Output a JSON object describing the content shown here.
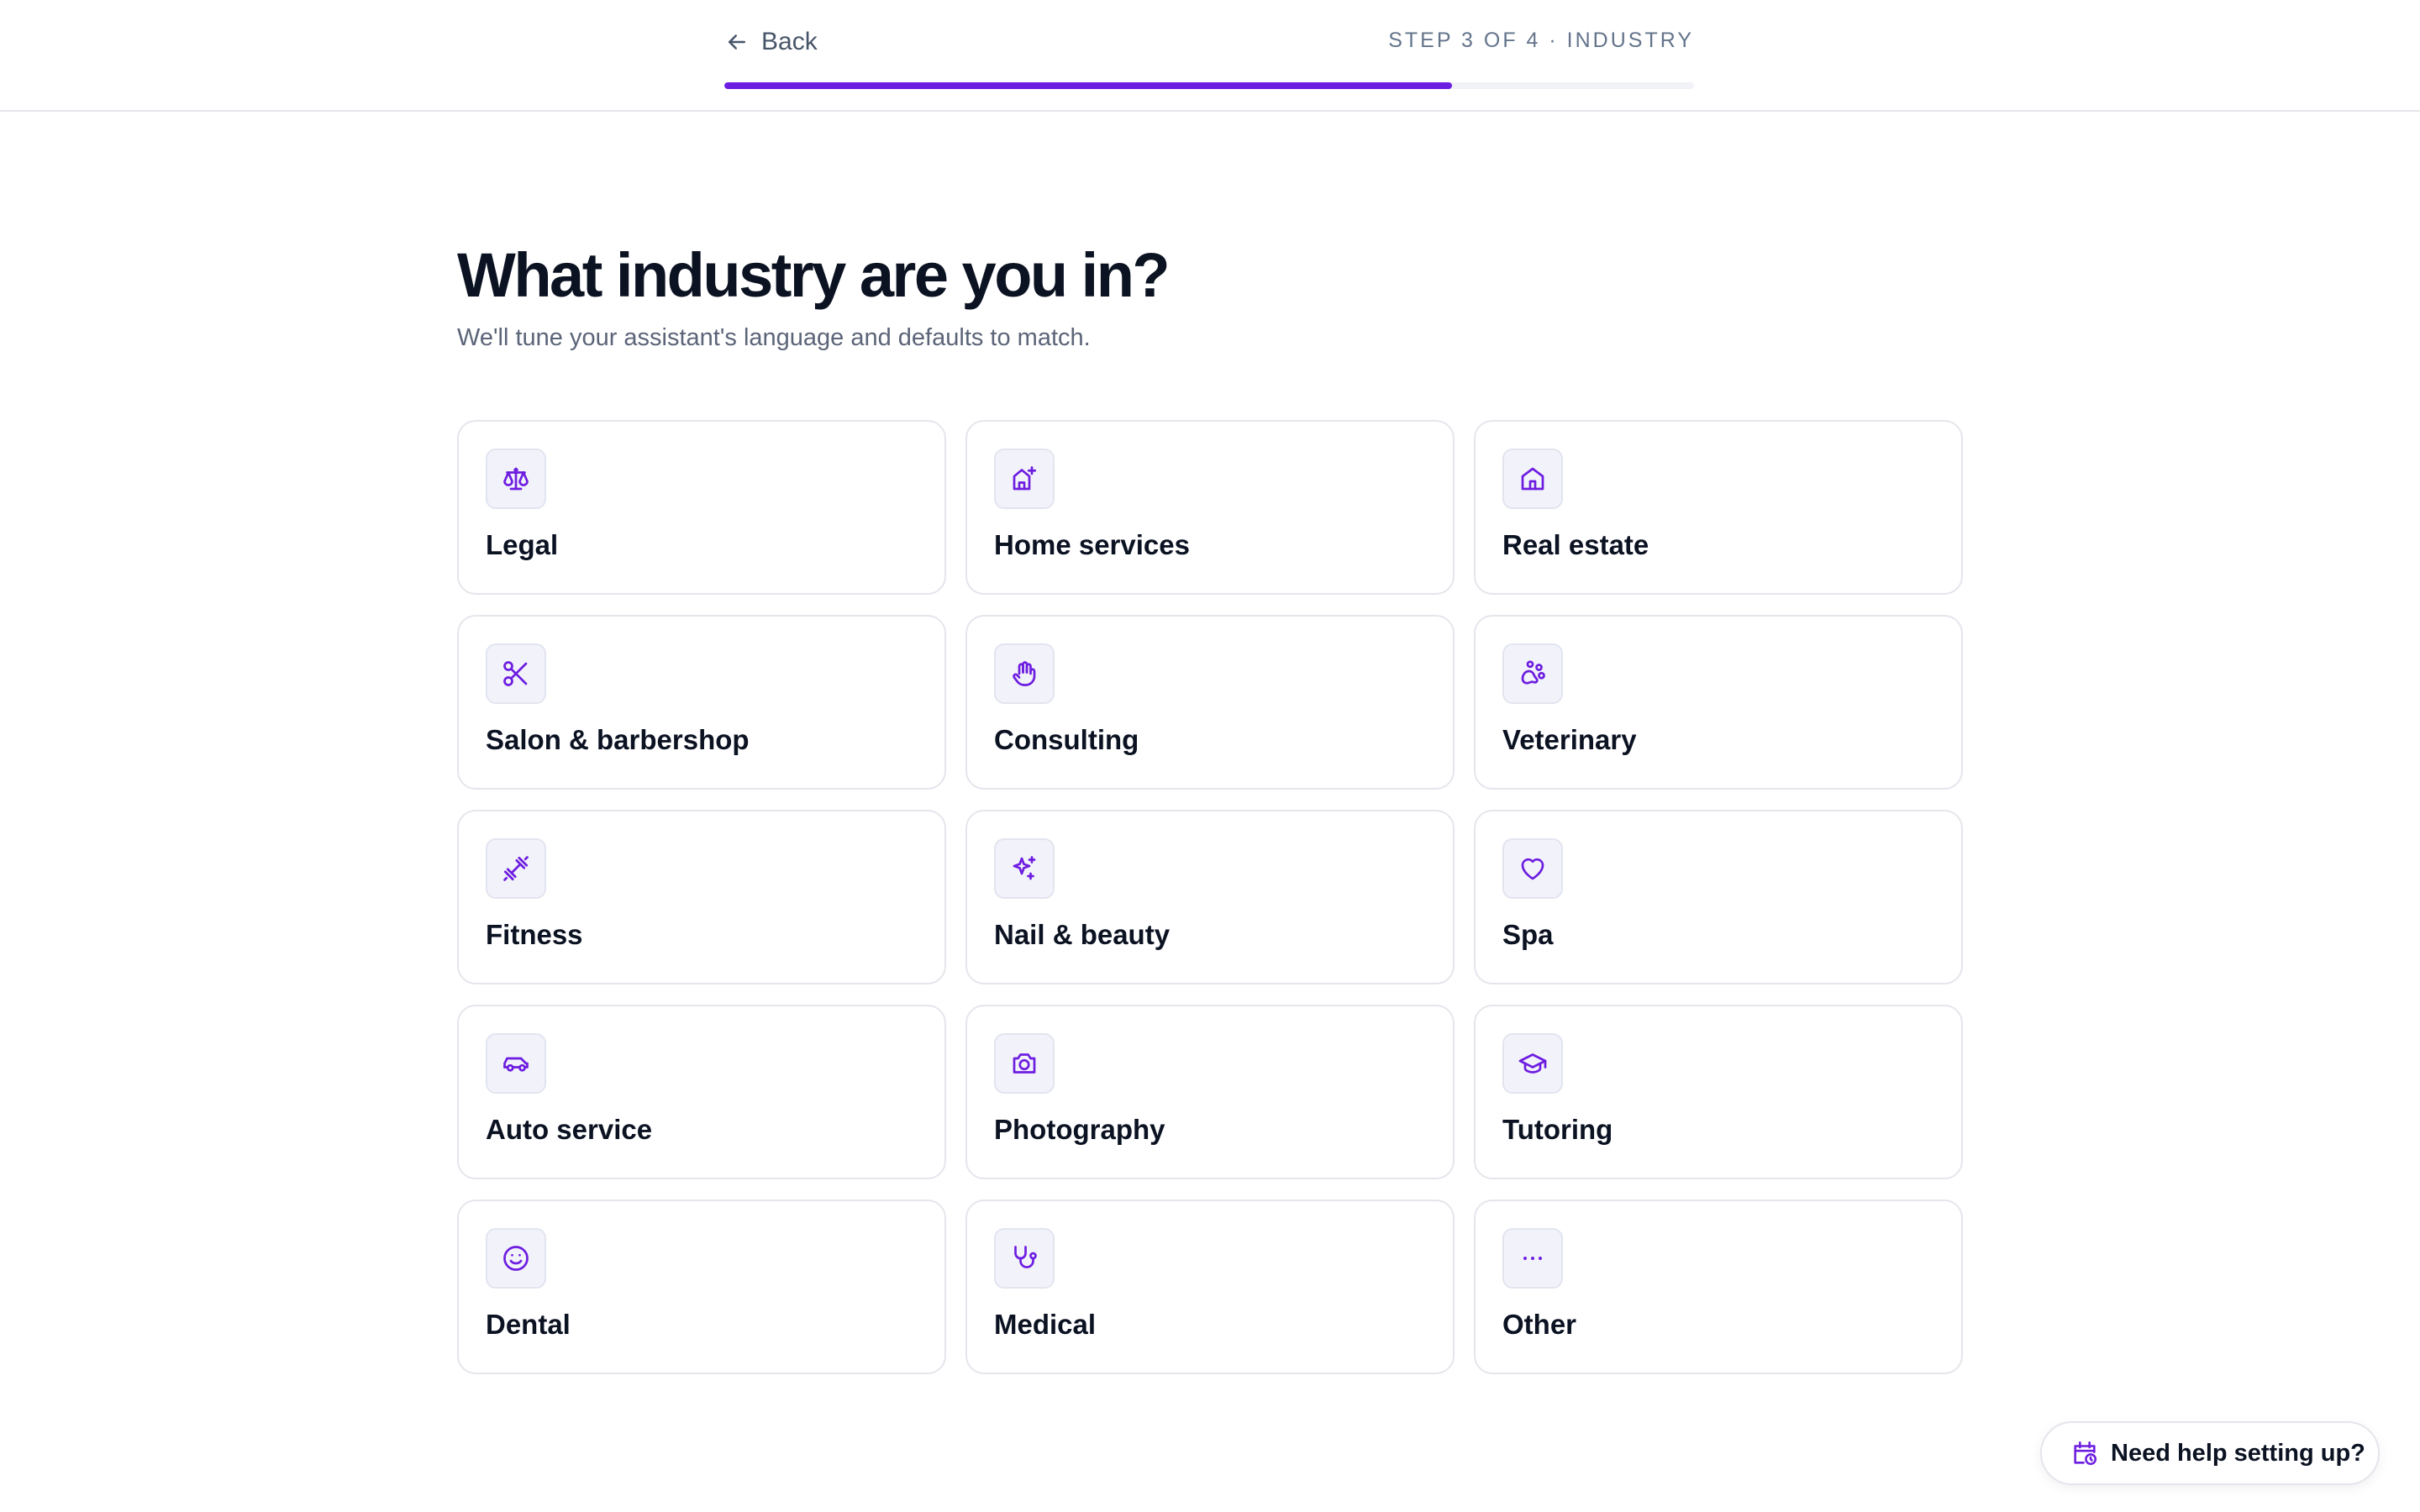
{
  "header": {
    "back_label": "Back",
    "step_label": "STEP 3 OF 4 · INDUSTRY",
    "progress_fraction": 0.75
  },
  "main": {
    "title": "What industry are you in?",
    "subtitle": "We'll tune your assistant's language and defaults to match."
  },
  "industries": [
    {
      "label": "Legal",
      "icon": "scale-icon"
    },
    {
      "label": "Home services",
      "icon": "home-plus-icon"
    },
    {
      "label": "Real estate",
      "icon": "house-icon"
    },
    {
      "label": "Salon & barbershop",
      "icon": "scissors-icon"
    },
    {
      "label": "Consulting",
      "icon": "hand-icon"
    },
    {
      "label": "Veterinary",
      "icon": "paw-icon"
    },
    {
      "label": "Fitness",
      "icon": "dumbbell-icon"
    },
    {
      "label": "Nail & beauty",
      "icon": "sparkles-icon"
    },
    {
      "label": "Spa",
      "icon": "heart-icon"
    },
    {
      "label": "Auto service",
      "icon": "car-icon"
    },
    {
      "label": "Photography",
      "icon": "camera-icon"
    },
    {
      "label": "Tutoring",
      "icon": "graduation-cap-icon"
    },
    {
      "label": "Dental",
      "icon": "smile-icon"
    },
    {
      "label": "Medical",
      "icon": "stethoscope-icon"
    },
    {
      "label": "Other",
      "icon": "more-horizontal-icon"
    }
  ],
  "help": {
    "label": "Need help setting up?",
    "icon": "calendar-clock-icon"
  },
  "colors": {
    "accent": "#6d1de0",
    "progress_track": "#f1f2f7",
    "border": "#e4e6ec",
    "text": "#0b1222",
    "muted": "#5b6478"
  }
}
